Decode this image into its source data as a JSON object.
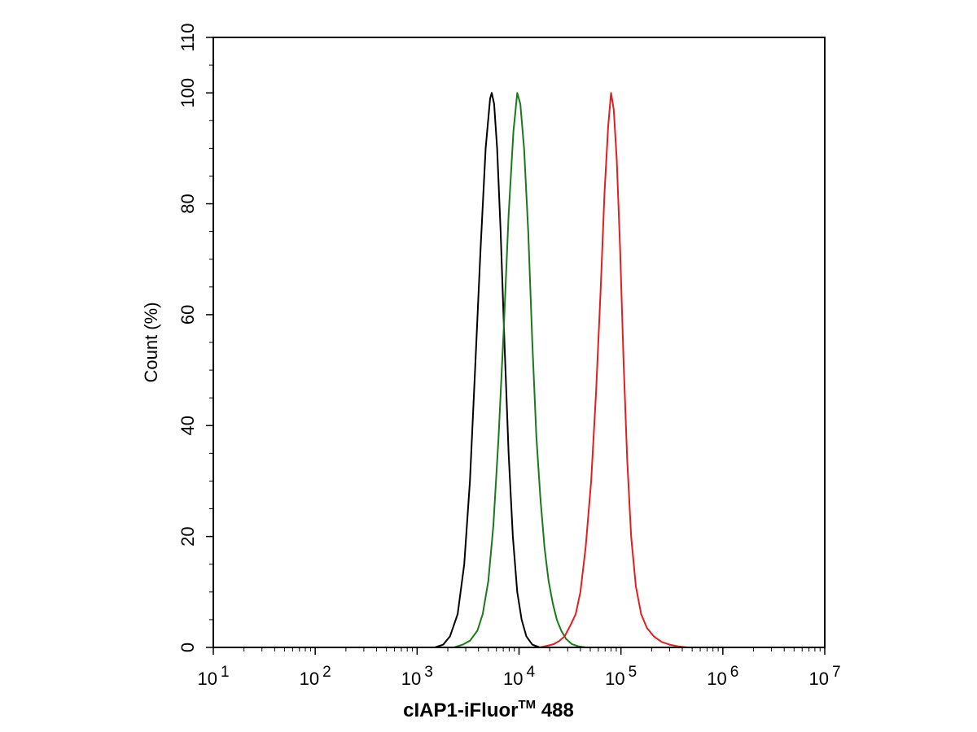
{
  "chart_data": {
    "type": "line",
    "xlabel_main": "cIAP1-iFluor",
    "xlabel_sup": "TM",
    "xlabel_tail": " 488",
    "ylabel": "Count  (%)",
    "xscale": "log",
    "xlim": [
      10,
      10000000
    ],
    "ylim": [
      0,
      110
    ],
    "x_ticks": [
      {
        "base": "10",
        "exp": "1"
      },
      {
        "base": "10",
        "exp": "2"
      },
      {
        "base": "10",
        "exp": "3"
      },
      {
        "base": "10",
        "exp": "4"
      },
      {
        "base": "10",
        "exp": "5"
      },
      {
        "base": "10",
        "exp": "6"
      },
      {
        "base": "10",
        "exp": "7"
      }
    ],
    "y_ticks": [
      "0",
      "20",
      "40",
      "60",
      "80",
      "100",
      "110"
    ],
    "y_tick_values": [
      0,
      20,
      40,
      60,
      80,
      100,
      110
    ],
    "grid": false,
    "series": [
      {
        "color": "#000000",
        "points": [
          [
            1500,
            0
          ],
          [
            1800,
            0.5
          ],
          [
            2100,
            2
          ],
          [
            2500,
            6
          ],
          [
            2900,
            15
          ],
          [
            3300,
            30
          ],
          [
            3700,
            50
          ],
          [
            4200,
            72
          ],
          [
            4700,
            90
          ],
          [
            5200,
            99
          ],
          [
            5400,
            100
          ],
          [
            5700,
            98
          ],
          [
            6100,
            90
          ],
          [
            6600,
            75
          ],
          [
            7200,
            55
          ],
          [
            7900,
            35
          ],
          [
            8700,
            20
          ],
          [
            9600,
            10
          ],
          [
            10600,
            5
          ],
          [
            11800,
            2
          ],
          [
            13500,
            0.5
          ],
          [
            16000,
            0
          ]
        ]
      },
      {
        "color": "#1a7a1a",
        "points": [
          [
            2300,
            0
          ],
          [
            2800,
            0.5
          ],
          [
            3300,
            1.2
          ],
          [
            3900,
            3
          ],
          [
            4400,
            6
          ],
          [
            5000,
            12
          ],
          [
            5600,
            22
          ],
          [
            6300,
            38
          ],
          [
            7100,
            58
          ],
          [
            7900,
            78
          ],
          [
            8800,
            93
          ],
          [
            9600,
            100
          ],
          [
            10300,
            98
          ],
          [
            11200,
            90
          ],
          [
            12300,
            75
          ],
          [
            13500,
            55
          ],
          [
            14800,
            38
          ],
          [
            16200,
            27
          ],
          [
            17800,
            18
          ],
          [
            19500,
            12
          ],
          [
            21400,
            8
          ],
          [
            23500,
            5
          ],
          [
            26000,
            3
          ],
          [
            29000,
            1.5
          ],
          [
            33000,
            0.6
          ],
          [
            38000,
            0.2
          ],
          [
            45000,
            0
          ]
        ]
      },
      {
        "color": "#e31e1e",
        "points": [
          [
            16000,
            0
          ],
          [
            19000,
            0.3
          ],
          [
            22000,
            0.6
          ],
          [
            25000,
            1.2
          ],
          [
            28000,
            2
          ],
          [
            32000,
            4
          ],
          [
            36000,
            6
          ],
          [
            40000,
            10
          ],
          [
            45000,
            18
          ],
          [
            51000,
            30
          ],
          [
            57000,
            46
          ],
          [
            63000,
            64
          ],
          [
            69000,
            82
          ],
          [
            75000,
            94
          ],
          [
            80000,
            100
          ],
          [
            85000,
            97
          ],
          [
            91000,
            88
          ],
          [
            98000,
            72
          ],
          [
            106000,
            52
          ],
          [
            115000,
            34
          ],
          [
            126000,
            20
          ],
          [
            140000,
            11
          ],
          [
            158000,
            6
          ],
          [
            180000,
            3.5
          ],
          [
            210000,
            2
          ],
          [
            250000,
            1
          ],
          [
            300000,
            0.5
          ],
          [
            360000,
            0.2
          ],
          [
            450000,
            0
          ]
        ]
      }
    ]
  }
}
